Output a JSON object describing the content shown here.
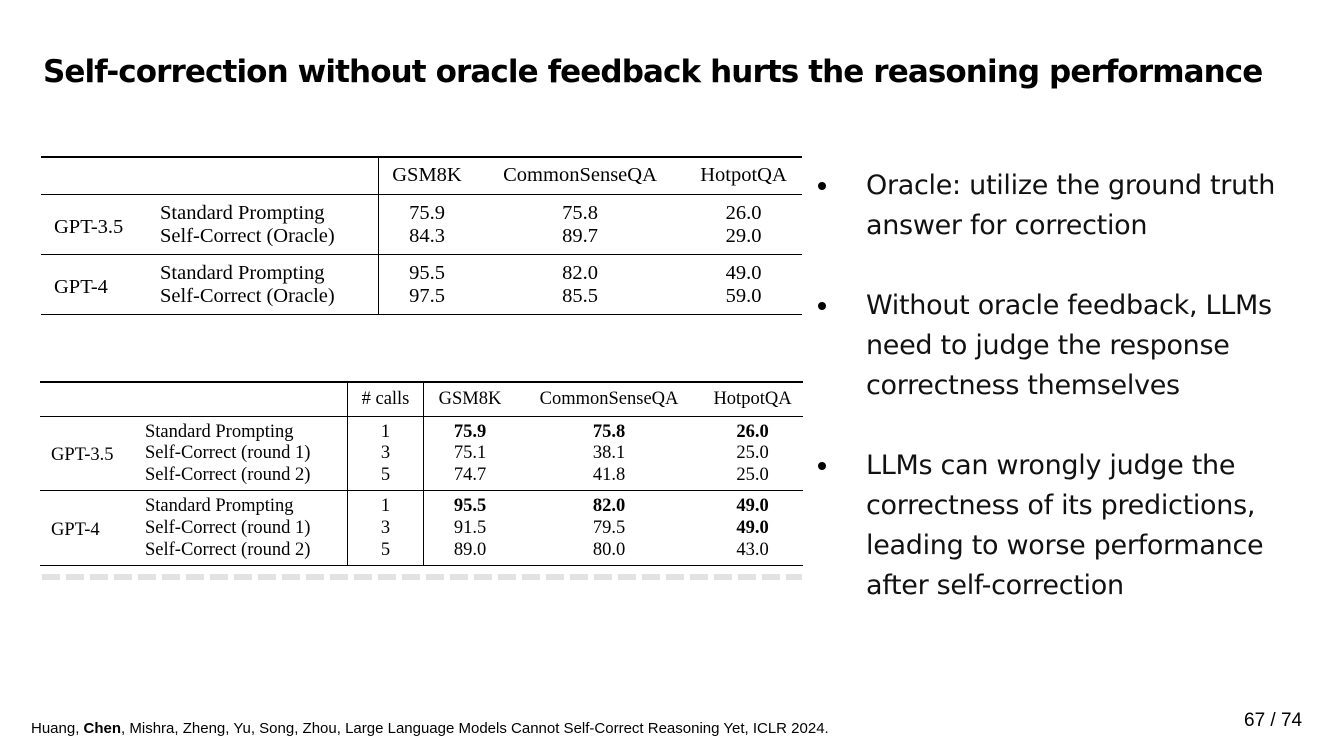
{
  "slide": {
    "title": "Self-correction without oracle feedback hurts the reasoning performance",
    "page_number": "67 / 74"
  },
  "table1": {
    "headers": [
      "GSM8K",
      "CommonSenseQA",
      "HotpotQA"
    ],
    "groups": [
      {
        "model": "GPT-3.5",
        "rows": [
          {
            "method": "Standard Prompting",
            "values": [
              "75.9",
              "75.8",
              "26.0"
            ]
          },
          {
            "method": "Self-Correct (Oracle)",
            "values": [
              "84.3",
              "89.7",
              "29.0"
            ]
          }
        ]
      },
      {
        "model": "GPT-4",
        "rows": [
          {
            "method": "Standard Prompting",
            "values": [
              "95.5",
              "82.0",
              "49.0"
            ]
          },
          {
            "method": "Self-Correct (Oracle)",
            "values": [
              "97.5",
              "85.5",
              "59.0"
            ]
          }
        ]
      }
    ]
  },
  "table2": {
    "headers": [
      "# calls",
      "GSM8K",
      "CommonSenseQA",
      "HotpotQA"
    ],
    "groups": [
      {
        "model": "GPT-3.5",
        "rows": [
          {
            "method": "Standard Prompting",
            "calls": "1",
            "values": [
              "75.9",
              "75.8",
              "26.0"
            ],
            "bold": [
              true,
              true,
              true
            ]
          },
          {
            "method": "Self-Correct (round 1)",
            "calls": "3",
            "values": [
              "75.1",
              "38.1",
              "25.0"
            ],
            "bold": [
              false,
              false,
              false
            ]
          },
          {
            "method": "Self-Correct (round 2)",
            "calls": "5",
            "values": [
              "74.7",
              "41.8",
              "25.0"
            ],
            "bold": [
              false,
              false,
              false
            ]
          }
        ]
      },
      {
        "model": "GPT-4",
        "rows": [
          {
            "method": "Standard Prompting",
            "calls": "1",
            "values": [
              "95.5",
              "82.0",
              "49.0"
            ],
            "bold": [
              true,
              true,
              true
            ]
          },
          {
            "method": "Self-Correct (round 1)",
            "calls": "3",
            "values": [
              "91.5",
              "79.5",
              "49.0"
            ],
            "bold": [
              false,
              false,
              true
            ]
          },
          {
            "method": "Self-Correct (round 2)",
            "calls": "5",
            "values": [
              "89.0",
              "80.0",
              "43.0"
            ],
            "bold": [
              false,
              false,
              false
            ]
          }
        ]
      }
    ]
  },
  "bullets": [
    "Oracle: utilize the ground truth answer for correction",
    "Without oracle feedback, LLMs need to judge the response correctness themselves",
    "LLMs can wrongly judge the correctness of its predictions, leading to worse performance after self-correction"
  ],
  "citation": {
    "before": "Huang, ",
    "highlight": "Chen",
    "after": ", Mishra, Zheng, Yu, Song, Zhou, Large Language Models Cannot Self-Correct Reasoning Yet, ICLR 2024."
  }
}
